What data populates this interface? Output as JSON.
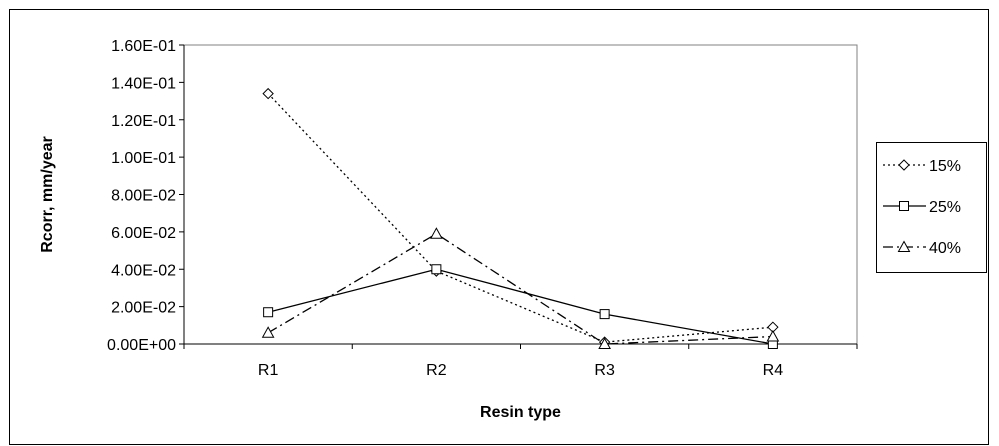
{
  "chart_data": {
    "type": "line",
    "categories": [
      "R1",
      "R2",
      "R3",
      "R4"
    ],
    "ylabel": "Rcorr, mm/year",
    "xlabel": "Resin type",
    "ylim": [
      0,
      0.16
    ],
    "yticks": [
      "0.00E+00",
      "2.00E-02",
      "4.00E-02",
      "6.00E-02",
      "8.00E-02",
      "1.00E-01",
      "1.20E-01",
      "1.40E-01",
      "1.60E-01"
    ],
    "ytick_values": [
      0,
      0.02,
      0.04,
      0.06,
      0.08,
      0.1,
      0.12,
      0.14,
      0.16
    ],
    "grid": false,
    "legend_position": "right",
    "series": [
      {
        "name": "15%",
        "values": [
          0.134,
          0.039,
          0.001,
          0.009
        ],
        "marker": "diamond",
        "dash": "dotted",
        "color": "#000000"
      },
      {
        "name": "25%",
        "values": [
          0.017,
          0.04,
          0.016,
          0.0
        ],
        "marker": "square",
        "dash": "solid",
        "color": "#000000"
      },
      {
        "name": "40%",
        "values": [
          0.006,
          0.059,
          0.0,
          0.004
        ],
        "marker": "triangle",
        "dash": "dashdot",
        "color": "#000000"
      }
    ]
  }
}
